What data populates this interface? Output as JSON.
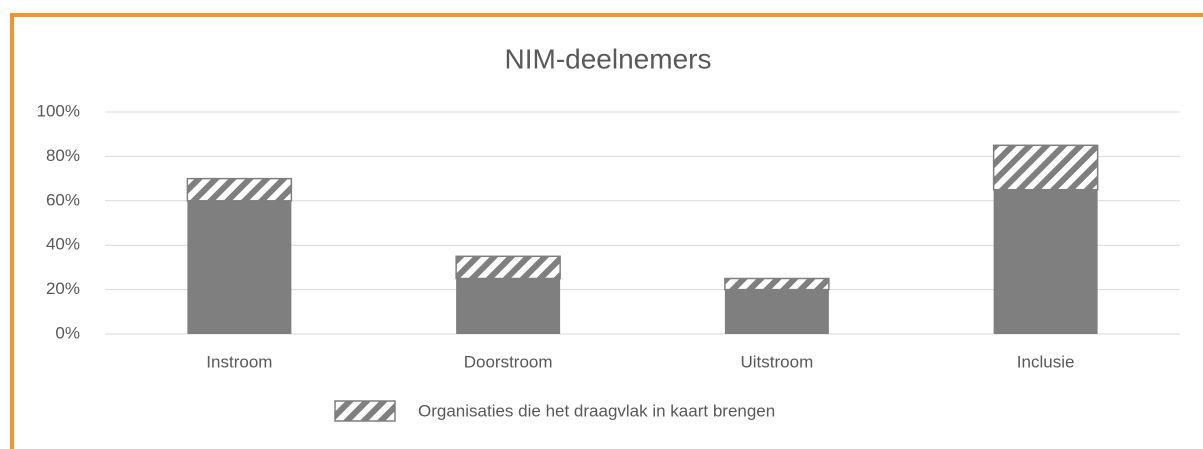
{
  "chart_data": {
    "type": "stacked_bar",
    "title": "NIM-deelnemers",
    "categories": [
      "Instroom",
      "Doorstroom",
      "Uitstroom",
      "Inclusie"
    ],
    "series": [
      {
        "color": "#7f7f7f",
        "values": [
          60,
          25,
          20,
          65
        ]
      },
      {
        "name": "Organisaties die het draagvlak in kaart brengen",
        "color": "#7f7f7f",
        "pattern": "hatch",
        "values": [
          10,
          10,
          5,
          20
        ]
      }
    ],
    "ylim": [
      0,
      100
    ],
    "yticks": [
      {
        "value": 0,
        "label": "0%"
      },
      {
        "value": 20,
        "label": "20%"
      },
      {
        "value": 40,
        "label": "40%"
      },
      {
        "value": 60,
        "label": "60%"
      },
      {
        "value": 80,
        "label": "80%"
      },
      {
        "value": 100,
        "label": "100%"
      }
    ],
    "grid": true,
    "legend": "bottom"
  }
}
